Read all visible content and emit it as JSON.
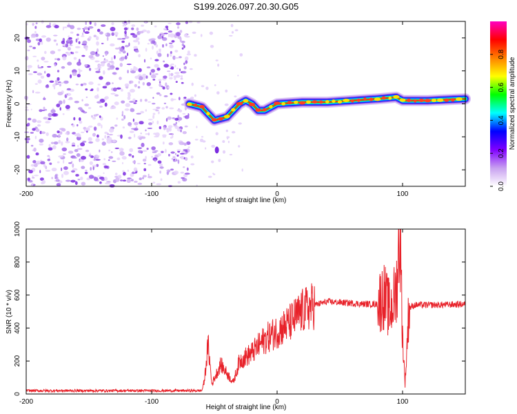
{
  "title": "S199.2026.097.20.30.G05",
  "chart_data": [
    {
      "type": "heatmap",
      "name": "spectrogram",
      "xlabel": "Height of straight line (km)",
      "ylabel": "Frequency (Hz)",
      "xlim": [
        -200,
        150
      ],
      "ylim": [
        -25,
        25
      ],
      "x_ticks": [
        -200,
        -100,
        0,
        100
      ],
      "y_ticks": [
        -20,
        -10,
        0,
        10,
        20
      ],
      "colorbar": {
        "label": "Normalized spectral amplitude",
        "range": [
          0,
          1
        ],
        "ticks": [
          0.0,
          0.2,
          0.4,
          0.6,
          0.8
        ],
        "tick_labels": [
          "0.0",
          "0.2",
          "0.4",
          "0.6",
          "0.8"
        ],
        "colors": [
          "#ffffff",
          "#c8a0f0",
          "#8000ff",
          "#0000ff",
          "#00ffff",
          "#00ff00",
          "#ffff00",
          "#ff8000",
          "#ff0000",
          "#ff00c0"
        ]
      },
      "noise_region_x": [
        -200,
        -70
      ],
      "ridge": [
        {
          "x": -70,
          "f": 0
        },
        {
          "x": -60,
          "f": -1
        },
        {
          "x": -50,
          "f": -5
        },
        {
          "x": -40,
          "f": -4
        },
        {
          "x": -30,
          "f": 0
        },
        {
          "x": -25,
          "f": 1
        },
        {
          "x": -20,
          "f": 0
        },
        {
          "x": -15,
          "f": -2
        },
        {
          "x": -10,
          "f": -2
        },
        {
          "x": -5,
          "f": -1
        },
        {
          "x": 0,
          "f": 0
        },
        {
          "x": 20,
          "f": 0.5
        },
        {
          "x": 40,
          "f": 0.5
        },
        {
          "x": 60,
          "f": 1
        },
        {
          "x": 80,
          "f": 1.5
        },
        {
          "x": 95,
          "f": 2
        },
        {
          "x": 100,
          "f": 1
        },
        {
          "x": 120,
          "f": 1
        },
        {
          "x": 150,
          "f": 1.5
        }
      ]
    },
    {
      "type": "line",
      "name": "snr",
      "xlabel": "Height of straight line (km)",
      "ylabel": "SNR (10 * v/v)",
      "xlim": [
        -200,
        150
      ],
      "ylim": [
        0,
        1000
      ],
      "x_ticks": [
        -200,
        -100,
        0,
        100
      ],
      "y_ticks": [
        0,
        200,
        400,
        600,
        800,
        1000
      ],
      "color": "#e8222a",
      "envelope": [
        {
          "x": -200,
          "snr": 20
        },
        {
          "x": -150,
          "snr": 20
        },
        {
          "x": -100,
          "snr": 20
        },
        {
          "x": -60,
          "snr": 20
        },
        {
          "x": -58,
          "snr": 80
        },
        {
          "x": -55,
          "snr": 300
        },
        {
          "x": -52,
          "snr": 60
        },
        {
          "x": -45,
          "snr": 180
        },
        {
          "x": -35,
          "snr": 70
        },
        {
          "x": -30,
          "snr": 200
        },
        {
          "x": -20,
          "snr": 250
        },
        {
          "x": -10,
          "snr": 330
        },
        {
          "x": 0,
          "snr": 380
        },
        {
          "x": 10,
          "snr": 430
        },
        {
          "x": 20,
          "snr": 500
        },
        {
          "x": 30,
          "snr": 540
        },
        {
          "x": 40,
          "snr": 560
        },
        {
          "x": 50,
          "snr": 555
        },
        {
          "x": 60,
          "snr": 550
        },
        {
          "x": 70,
          "snr": 545
        },
        {
          "x": 80,
          "snr": 545
        },
        {
          "x": 85,
          "snr": 600
        },
        {
          "x": 90,
          "snr": 500
        },
        {
          "x": 95,
          "snr": 620
        },
        {
          "x": 98,
          "snr": 1000
        },
        {
          "x": 100,
          "snr": 350
        },
        {
          "x": 102,
          "snr": 60
        },
        {
          "x": 105,
          "snr": 520
        },
        {
          "x": 110,
          "snr": 540
        },
        {
          "x": 130,
          "snr": 540
        },
        {
          "x": 150,
          "snr": 545
        }
      ]
    }
  ]
}
